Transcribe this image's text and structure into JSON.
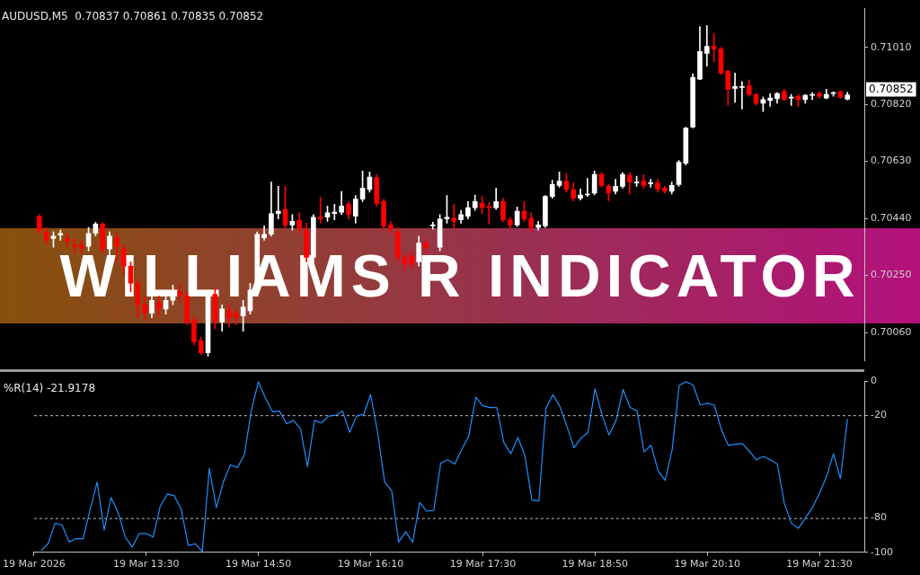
{
  "chart_data": [
    {
      "type": "candlestick",
      "title": "AUDUSD,M5  0.70837 0.70861 0.70835 0.70852",
      "x": [
        "2026-03-19T12:15",
        "2026-03-19T12:20",
        "2026-03-19T12:25",
        "2026-03-19T12:30",
        "2026-03-19T12:35",
        "2026-03-19T12:40",
        "2026-03-19T12:45",
        "2026-03-19T12:50",
        "2026-03-19T12:55",
        "2026-03-19T13:00",
        "2026-03-19T13:05",
        "2026-03-19T13:10",
        "2026-03-19T13:15",
        "2026-03-19T13:20",
        "2026-03-19T13:25",
        "2026-03-19T13:30",
        "2026-03-19T13:35",
        "2026-03-19T13:40",
        "2026-03-19T13:45",
        "2026-03-19T13:50",
        "2026-03-19T13:55",
        "2026-03-19T14:00",
        "2026-03-19T14:05",
        "2026-03-19T14:10",
        "2026-03-19T14:15",
        "2026-03-19T14:20",
        "2026-03-19T14:25",
        "2026-03-19T14:30",
        "2026-03-19T14:35",
        "2026-03-19T14:40",
        "2026-03-19T14:45",
        "2026-03-19T14:50",
        "2026-03-19T14:55",
        "2026-03-19T15:00",
        "2026-03-19T15:05",
        "2026-03-19T15:10",
        "2026-03-19T15:15",
        "2026-03-19T15:20",
        "2026-03-19T15:25",
        "2026-03-19T15:30",
        "2026-03-19T15:35",
        "2026-03-19T15:40",
        "2026-03-19T15:45",
        "2026-03-19T15:50",
        "2026-03-19T15:55",
        "2026-03-19T16:00",
        "2026-03-19T16:05",
        "2026-03-19T16:10",
        "2026-03-19T16:15",
        "2026-03-19T16:20",
        "2026-03-19T16:25",
        "2026-03-19T16:30",
        "2026-03-19T16:35",
        "2026-03-19T16:40",
        "2026-03-19T16:45",
        "2026-03-19T16:50",
        "2026-03-19T16:55",
        "2026-03-19T17:00",
        "2026-03-19T17:05",
        "2026-03-19T17:10",
        "2026-03-19T17:15",
        "2026-03-19T17:20",
        "2026-03-19T17:25",
        "2026-03-19T17:30",
        "2026-03-19T17:35",
        "2026-03-19T17:40",
        "2026-03-19T17:45",
        "2026-03-19T17:50",
        "2026-03-19T17:55",
        "2026-03-19T18:00",
        "2026-03-19T18:05",
        "2026-03-19T18:10",
        "2026-03-19T18:15",
        "2026-03-19T18:20",
        "2026-03-19T18:25",
        "2026-03-19T18:30",
        "2026-03-19T18:35",
        "2026-03-19T18:40",
        "2026-03-19T18:45",
        "2026-03-19T18:50",
        "2026-03-19T18:55",
        "2026-03-19T19:00",
        "2026-03-19T19:05",
        "2026-03-19T19:10",
        "2026-03-19T19:15",
        "2026-03-19T19:20",
        "2026-03-19T19:25",
        "2026-03-19T19:30",
        "2026-03-19T19:35",
        "2026-03-19T19:40",
        "2026-03-19T19:45",
        "2026-03-19T19:50",
        "2026-03-19T19:55",
        "2026-03-19T20:00",
        "2026-03-19T20:05",
        "2026-03-19T20:10",
        "2026-03-19T20:15",
        "2026-03-19T20:20",
        "2026-03-19T20:25",
        "2026-03-19T20:30",
        "2026-03-19T20:35",
        "2026-03-19T20:40",
        "2026-03-19T20:45",
        "2026-03-19T20:50",
        "2026-03-19T20:55",
        "2026-03-19T21:00",
        "2026-03-19T21:05",
        "2026-03-19T21:10",
        "2026-03-19T21:15",
        "2026-03-19T21:20",
        "2026-03-19T21:25",
        "2026-03-19T21:30",
        "2026-03-19T21:35",
        "2026-03-19T21:40",
        "2026-03-19T21:45",
        "2026-03-19T21:50"
      ],
      "ohlc": [
        [
          0.70447,
          0.70453,
          0.7039,
          0.70401
        ],
        [
          0.70395,
          0.7041,
          0.70352,
          0.70367
        ],
        [
          0.70373,
          0.70395,
          0.70344,
          0.70381
        ],
        [
          0.70384,
          0.70401,
          0.70367,
          0.7039
        ],
        [
          0.70373,
          0.7039,
          0.70344,
          0.70364
        ],
        [
          0.70352,
          0.70373,
          0.70324,
          0.70347
        ],
        [
          0.7035,
          0.70367,
          0.70324,
          0.70341
        ],
        [
          0.70347,
          0.7041,
          0.70332,
          0.7039
        ],
        [
          0.7039,
          0.70427,
          0.70381,
          0.70421
        ],
        [
          0.70421,
          0.70427,
          0.70324,
          0.70338
        ],
        [
          0.70338,
          0.70395,
          0.7031,
          0.70381
        ],
        [
          0.70375,
          0.70395,
          0.70295,
          0.70347
        ],
        [
          0.70338,
          0.70352,
          0.70252,
          0.70281
        ],
        [
          0.70281,
          0.70295,
          0.70195,
          0.70224
        ],
        [
          0.70224,
          0.70238,
          0.70109,
          0.70152
        ],
        [
          0.70152,
          0.70181,
          0.70104,
          0.70124
        ],
        [
          0.70124,
          0.70195,
          0.70109,
          0.70167
        ],
        [
          0.70161,
          0.70181,
          0.70115,
          0.70138
        ],
        [
          0.70138,
          0.70195,
          0.70121,
          0.70167
        ],
        [
          0.70167,
          0.70218,
          0.70152,
          0.70195
        ],
        [
          0.70195,
          0.70224,
          0.70161,
          0.70181
        ],
        [
          0.70181,
          0.70195,
          0.70086,
          0.70095
        ],
        [
          0.70101,
          0.70115,
          0.70018,
          0.70029
        ],
        [
          0.70032,
          0.70044,
          0.69986,
          0.69992
        ],
        [
          0.69992,
          0.70201,
          0.69981,
          0.70189
        ],
        [
          0.70187,
          0.70204,
          0.70072,
          0.70095
        ],
        [
          0.70095,
          0.70152,
          0.70064,
          0.70138
        ],
        [
          0.70132,
          0.70152,
          0.70078,
          0.70109
        ],
        [
          0.70124,
          0.70138,
          0.70086,
          0.70109
        ],
        [
          0.70115,
          0.70167,
          0.70064,
          0.70144
        ],
        [
          0.70132,
          0.70224,
          0.70121,
          0.70201
        ],
        [
          0.70201,
          0.70395,
          0.70195,
          0.70387
        ],
        [
          0.70375,
          0.70415,
          0.70367,
          0.70387
        ],
        [
          0.70387,
          0.70561,
          0.70381,
          0.70456
        ],
        [
          0.70456,
          0.70547,
          0.70438,
          0.70464
        ],
        [
          0.7047,
          0.70547,
          0.70407,
          0.70418
        ],
        [
          0.70418,
          0.70453,
          0.70401,
          0.7043
        ],
        [
          0.70433,
          0.70459,
          0.7039,
          0.70407
        ],
        [
          0.70401,
          0.70424,
          0.70295,
          0.7031
        ],
        [
          0.7031,
          0.70453,
          0.70295,
          0.70444
        ],
        [
          0.70444,
          0.7051,
          0.70424,
          0.70438
        ],
        [
          0.70444,
          0.70481,
          0.7043,
          0.70459
        ],
        [
          0.70456,
          0.70487,
          0.70435,
          0.70461
        ],
        [
          0.70461,
          0.7053,
          0.70453,
          0.70481
        ],
        [
          0.70487,
          0.70496,
          0.70438,
          0.70453
        ],
        [
          0.70447,
          0.70516,
          0.70424,
          0.70504
        ],
        [
          0.70504,
          0.70598,
          0.70496,
          0.70541
        ],
        [
          0.70536,
          0.70595,
          0.70527,
          0.70578
        ],
        [
          0.70576,
          0.70587,
          0.70481,
          0.7049
        ],
        [
          0.70496,
          0.70504,
          0.70401,
          0.70415
        ],
        [
          0.70418,
          0.7043,
          0.7039,
          0.70404
        ],
        [
          0.70395,
          0.7041,
          0.70295,
          0.7031
        ],
        [
          0.7031,
          0.70324,
          0.70267,
          0.70287
        ],
        [
          0.70315,
          0.70332,
          0.70275,
          0.70287
        ],
        [
          0.70295,
          0.70381,
          0.70281,
          0.70358
        ],
        [
          0.70358,
          0.70373,
          0.70324,
          0.70344
        ],
        [
          0.70415,
          0.70427,
          0.70404,
          0.70418
        ],
        [
          0.70344,
          0.70453,
          0.70332,
          0.70438
        ],
        [
          0.70438,
          0.70516,
          0.70424,
          0.70444
        ],
        [
          0.70441,
          0.70487,
          0.70407,
          0.7043
        ],
        [
          0.70435,
          0.70467,
          0.70424,
          0.70453
        ],
        [
          0.70447,
          0.70496,
          0.70438,
          0.70476
        ],
        [
          0.70476,
          0.70518,
          0.70467,
          0.70496
        ],
        [
          0.7049,
          0.70513,
          0.70456,
          0.70476
        ],
        [
          0.70478,
          0.70493,
          0.70421,
          0.70476
        ],
        [
          0.70476,
          0.70541,
          0.7047,
          0.70496
        ],
        [
          0.70496,
          0.70507,
          0.7043,
          0.70435
        ],
        [
          0.70435,
          0.70444,
          0.70401,
          0.70418
        ],
        [
          0.70418,
          0.70478,
          0.70413,
          0.70464
        ],
        [
          0.70464,
          0.70496,
          0.7043,
          0.70438
        ],
        [
          0.70441,
          0.70459,
          0.70395,
          0.7041
        ],
        [
          0.7041,
          0.7043,
          0.70401,
          0.70418
        ],
        [
          0.70415,
          0.70516,
          0.7041,
          0.70513
        ],
        [
          0.70513,
          0.70567,
          0.70507,
          0.70553
        ],
        [
          0.7055,
          0.70595,
          0.70544,
          0.70564
        ],
        [
          0.70564,
          0.7059,
          0.70527,
          0.70536
        ],
        [
          0.70536,
          0.70558,
          0.70498,
          0.70507
        ],
        [
          0.70507,
          0.70538,
          0.70501,
          0.70518
        ],
        [
          0.70518,
          0.70573,
          0.70513,
          0.70521
        ],
        [
          0.70524,
          0.70598,
          0.70518,
          0.70587
        ],
        [
          0.70587,
          0.70593,
          0.70544,
          0.7055
        ],
        [
          0.70547,
          0.70553,
          0.70498,
          0.70524
        ],
        [
          0.7053,
          0.7057,
          0.70521,
          0.70547
        ],
        [
          0.70547,
          0.70593,
          0.70541,
          0.70587
        ],
        [
          0.70584,
          0.70593,
          0.70521,
          0.70561
        ],
        [
          0.70558,
          0.70581,
          0.70547,
          0.70561
        ],
        [
          0.70564,
          0.70587,
          0.70541,
          0.7055
        ],
        [
          0.70556,
          0.7057,
          0.70544,
          0.70558
        ],
        [
          0.70558,
          0.7057,
          0.70527,
          0.70538
        ],
        [
          0.70541,
          0.70547,
          0.70524,
          0.7053
        ],
        [
          0.7053,
          0.70561,
          0.70521,
          0.7055
        ],
        [
          0.70553,
          0.70633,
          0.70547,
          0.70627
        ],
        [
          0.70624,
          0.70744,
          0.70618,
          0.70741
        ],
        [
          0.70744,
          0.70922,
          0.70741,
          0.7091
        ],
        [
          0.70904,
          0.71079,
          0.70902,
          0.70996
        ],
        [
          0.7099,
          0.71082,
          0.70947,
          0.71013
        ],
        [
          0.71013,
          0.71056,
          0.70962,
          0.71005
        ],
        [
          0.71005,
          0.7101,
          0.70919,
          0.70924
        ],
        [
          0.7093,
          0.70933,
          0.70816,
          0.7087
        ],
        [
          0.70873,
          0.70924,
          0.70827,
          0.70879
        ],
        [
          0.70876,
          0.70896,
          0.70804,
          0.70879
        ],
        [
          0.70882,
          0.70902,
          0.70847,
          0.70853
        ],
        [
          0.70853,
          0.70856,
          0.70816,
          0.70824
        ],
        [
          0.70824,
          0.70844,
          0.70796,
          0.70836
        ],
        [
          0.70833,
          0.70856,
          0.70813,
          0.70841
        ],
        [
          0.70839,
          0.70859,
          0.70824,
          0.70856
        ],
        [
          0.70862,
          0.7087,
          0.70833,
          0.70836
        ],
        [
          0.70841,
          0.70853,
          0.70816,
          0.70844
        ],
        [
          0.70847,
          0.70853,
          0.70813,
          0.70836
        ],
        [
          0.70836,
          0.70853,
          0.70824,
          0.7085
        ],
        [
          0.7085,
          0.70859,
          0.70836,
          0.70853
        ],
        [
          0.70856,
          0.70862,
          0.70841,
          0.70847
        ],
        [
          0.70841,
          0.7087,
          0.70839,
          0.70853
        ],
        [
          0.70856,
          0.70862,
          0.70847,
          0.70859
        ],
        [
          0.70862,
          0.70864,
          0.70841,
          0.70844
        ],
        [
          0.70837,
          0.70861,
          0.70835,
          0.70852
        ]
      ],
      "colors": [
        "#ff0000",
        "#ff0000",
        "#ffffff",
        "#ffffff",
        "#ff0000",
        "#ff0000",
        "#ff0000",
        "#ffffff",
        "#ffffff",
        "#ff0000",
        "#ffffff",
        "#ff0000",
        "#ff0000",
        "#ff0000",
        "#ff0000",
        "#ff0000",
        "#ffffff",
        "#ff0000",
        "#ffffff",
        "#ffffff",
        "#ff0000",
        "#ff0000",
        "#ff0000",
        "#ff0000",
        "#ffffff",
        "#ff0000",
        "#ffffff",
        "#ff0000",
        "#ff0000",
        "#ffffff",
        "#ffffff",
        "#ffffff",
        "#ffffff",
        "#ffffff",
        "#ffffff",
        "#ff0000",
        "#ffffff",
        "#ff0000",
        "#ff0000",
        "#ffffff",
        "#ff0000",
        "#ffffff",
        "#ffffff",
        "#ffffff",
        "#ff0000",
        "#ffffff",
        "#ffffff",
        "#ffffff",
        "#ff0000",
        "#ff0000",
        "#ff0000",
        "#ff0000",
        "#ff0000",
        "#ff0000",
        "#ffffff",
        "#ff0000",
        "#ffffff",
        "#ffffff",
        "#ffffff",
        "#ff0000",
        "#ffffff",
        "#ffffff",
        "#ffffff",
        "#ff0000",
        "#ff0000",
        "#ffffff",
        "#ff0000",
        "#ff0000",
        "#ffffff",
        "#ff0000",
        "#ff0000",
        "#ffffff",
        "#ffffff",
        "#ffffff",
        "#ffffff",
        "#ff0000",
        "#ff0000",
        "#ffffff",
        "#ffffff",
        "#ffffff",
        "#ff0000",
        "#ff0000",
        "#ffffff",
        "#ffffff",
        "#ff0000",
        "#ffffff",
        "#ff0000",
        "#ffffff",
        "#ff0000",
        "#ff0000",
        "#ffffff",
        "#ffffff",
        "#ffffff",
        "#ffffff",
        "#ffffff",
        "#ffffff",
        "#ff0000",
        "#ff0000",
        "#ff0000",
        "#ffffff",
        "#ffffff",
        "#ff0000",
        "#ff0000",
        "#ffffff",
        "#ffffff",
        "#ffffff",
        "#ff0000",
        "#ffffff",
        "#ff0000",
        "#ffffff",
        "#ffffff",
        "#ff0000",
        "#ffffff",
        "#ffffff",
        "#ff0000",
        "#ffffff"
      ],
      "xlim": [
        "2026-03-19T12:10",
        "2026-03-19T22:02"
      ],
      "ylim": [
        0.69966,
        0.71139
      ],
      "yticks": [
        {
          "value": 0.7101,
          "label": "0.71010"
        },
        {
          "value": 0.7082,
          "label": "0.70820"
        },
        {
          "value": 0.7063,
          "label": "0.70630"
        },
        {
          "value": 0.7044,
          "label": "0.70440"
        },
        {
          "value": 0.7025,
          "label": "0.70250"
        },
        {
          "value": 0.7006,
          "label": "0.70060"
        }
      ],
      "tick_labels": "y",
      "grid": false,
      "annotations": [
        "WILLIAMS R INDICATOR",
        "0.70852"
      ]
    },
    {
      "type": "line",
      "title": "%R(14) -21.9178",
      "x": [
        "2026-03-19T12:15",
        "2026-03-19T12:20",
        "2026-03-19T12:25",
        "2026-03-19T12:30",
        "2026-03-19T12:35",
        "2026-03-19T12:40",
        "2026-03-19T12:45",
        "2026-03-19T12:50",
        "2026-03-19T12:55",
        "2026-03-19T13:00",
        "2026-03-19T13:05",
        "2026-03-19T13:10",
        "2026-03-19T13:15",
        "2026-03-19T13:20",
        "2026-03-19T13:25",
        "2026-03-19T13:30",
        "2026-03-19T13:35",
        "2026-03-19T13:40",
        "2026-03-19T13:45",
        "2026-03-19T13:50",
        "2026-03-19T13:55",
        "2026-03-19T14:00",
        "2026-03-19T14:05",
        "2026-03-19T14:10",
        "2026-03-19T14:15",
        "2026-03-19T14:20",
        "2026-03-19T14:25",
        "2026-03-19T14:30",
        "2026-03-19T14:35",
        "2026-03-19T14:40",
        "2026-03-19T14:45",
        "2026-03-19T14:50",
        "2026-03-19T14:55",
        "2026-03-19T15:00",
        "2026-03-19T15:05",
        "2026-03-19T15:10",
        "2026-03-19T15:15",
        "2026-03-19T15:20",
        "2026-03-19T15:25",
        "2026-03-19T15:30",
        "2026-03-19T15:35",
        "2026-03-19T15:40",
        "2026-03-19T15:45",
        "2026-03-19T15:50",
        "2026-03-19T15:55",
        "2026-03-19T16:00",
        "2026-03-19T16:05",
        "2026-03-19T16:10",
        "2026-03-19T16:15",
        "2026-03-19T16:20",
        "2026-03-19T16:25",
        "2026-03-19T16:30",
        "2026-03-19T16:35",
        "2026-03-19T16:40",
        "2026-03-19T16:45",
        "2026-03-19T16:50",
        "2026-03-19T16:55",
        "2026-03-19T17:00",
        "2026-03-19T17:05",
        "2026-03-19T17:10",
        "2026-03-19T17:15",
        "2026-03-19T17:20",
        "2026-03-19T17:25",
        "2026-03-19T17:30",
        "2026-03-19T17:35",
        "2026-03-19T17:40",
        "2026-03-19T17:45",
        "2026-03-19T17:50",
        "2026-03-19T17:55",
        "2026-03-19T18:00",
        "2026-03-19T18:05",
        "2026-03-19T18:10",
        "2026-03-19T18:15",
        "2026-03-19T18:20",
        "2026-03-19T18:25",
        "2026-03-19T18:30",
        "2026-03-19T18:35",
        "2026-03-19T18:40",
        "2026-03-19T18:45",
        "2026-03-19T18:50",
        "2026-03-19T18:55",
        "2026-03-19T19:00",
        "2026-03-19T19:05",
        "2026-03-19T19:10",
        "2026-03-19T19:15",
        "2026-03-19T19:20",
        "2026-03-19T19:25",
        "2026-03-19T19:30",
        "2026-03-19T19:35",
        "2026-03-19T19:40",
        "2026-03-19T19:45",
        "2026-03-19T19:50",
        "2026-03-19T19:55",
        "2026-03-19T20:00",
        "2026-03-19T20:05",
        "2026-03-19T20:10",
        "2026-03-19T20:15",
        "2026-03-19T20:20",
        "2026-03-19T20:25",
        "2026-03-19T20:30",
        "2026-03-19T20:35",
        "2026-03-19T20:40",
        "2026-03-19T20:45",
        "2026-03-19T20:50",
        "2026-03-19T20:55",
        "2026-03-19T21:00",
        "2026-03-19T21:05",
        "2026-03-19T21:10",
        "2026-03-19T21:15",
        "2026-03-19T21:20",
        "2026-03-19T21:25",
        "2026-03-19T21:30",
        "2026-03-19T21:35",
        "2026-03-19T21:40",
        "2026-03-19T21:45",
        "2026-03-19T21:50"
      ],
      "series": [
        {
          "color": "#1e90ff",
          "values": [
            -99,
            -95,
            -83,
            -84,
            -94,
            -92,
            -92,
            -75,
            -59,
            -87,
            -68,
            -77,
            -91,
            -97,
            -89,
            -89,
            -91,
            -73,
            -66,
            -67,
            -75,
            -96,
            -95,
            -99.5,
            -51,
            -74,
            -59,
            -49,
            -50.5,
            -43,
            -17,
            -0.5,
            -10,
            -18,
            -17.5,
            -25,
            -23,
            -28,
            -50,
            -23,
            -24.5,
            -20.5,
            -20,
            -17.5,
            -30,
            -20.5,
            -19.5,
            -8,
            -30,
            -59,
            -64,
            -94,
            -88,
            -94,
            -71,
            -76,
            -75.5,
            -48,
            -46,
            -48.5,
            -40,
            -32,
            -9.5,
            -14.5,
            -15.5,
            -15.5,
            -36,
            -42.5,
            -33,
            -43.5,
            -69.5,
            -70,
            -16,
            -8,
            -15,
            -26.5,
            -39,
            -33.5,
            -30,
            -4.5,
            -20,
            -31.5,
            -23,
            -5,
            -15.5,
            -17.5,
            -41.5,
            -37.5,
            -52.5,
            -58,
            -40,
            -2.5,
            -0.5,
            -2.5,
            -14,
            -13,
            -14,
            -28,
            -37.5,
            -37,
            -36.5,
            -41,
            -46,
            -44,
            -46,
            -48.5,
            -71.5,
            -83,
            -86,
            -80,
            -74,
            -65.5,
            -56,
            -42.5,
            -57,
            -22
          ]
        }
      ],
      "xlim": [
        "2026-03-19T12:10",
        "2026-03-19T22:02"
      ],
      "xticks": [
        {
          "value": "2026-03-19T12:10",
          "label": "19 Mar 2026"
        },
        {
          "value": "2026-03-19T13:30",
          "label": "19 Mar 13:30"
        },
        {
          "value": "2026-03-19T14:50",
          "label": "19 Mar 14:50"
        },
        {
          "value": "2026-03-19T16:10",
          "label": "19 Mar 16:10"
        },
        {
          "value": "2026-03-19T17:30",
          "label": "19 Mar 17:30"
        },
        {
          "value": "2026-03-19T18:50",
          "label": "19 Mar 18:50"
        },
        {
          "value": "2026-03-19T20:10",
          "label": "19 Mar 20:10"
        },
        {
          "value": "2026-03-19T21:30",
          "label": "19 Mar 21:30"
        }
      ],
      "ylim": [
        -100,
        0
      ],
      "yticks": [
        0,
        -20,
        -80,
        -100
      ],
      "grid": false,
      "ref_lines": [
        {
          "axis": "y",
          "value": -20,
          "color": "#c0c0c0",
          "line_style": "dashed"
        },
        {
          "axis": "y",
          "value": -80,
          "color": "#c0c0c0",
          "line_style": "dashed"
        }
      ]
    }
  ]
}
